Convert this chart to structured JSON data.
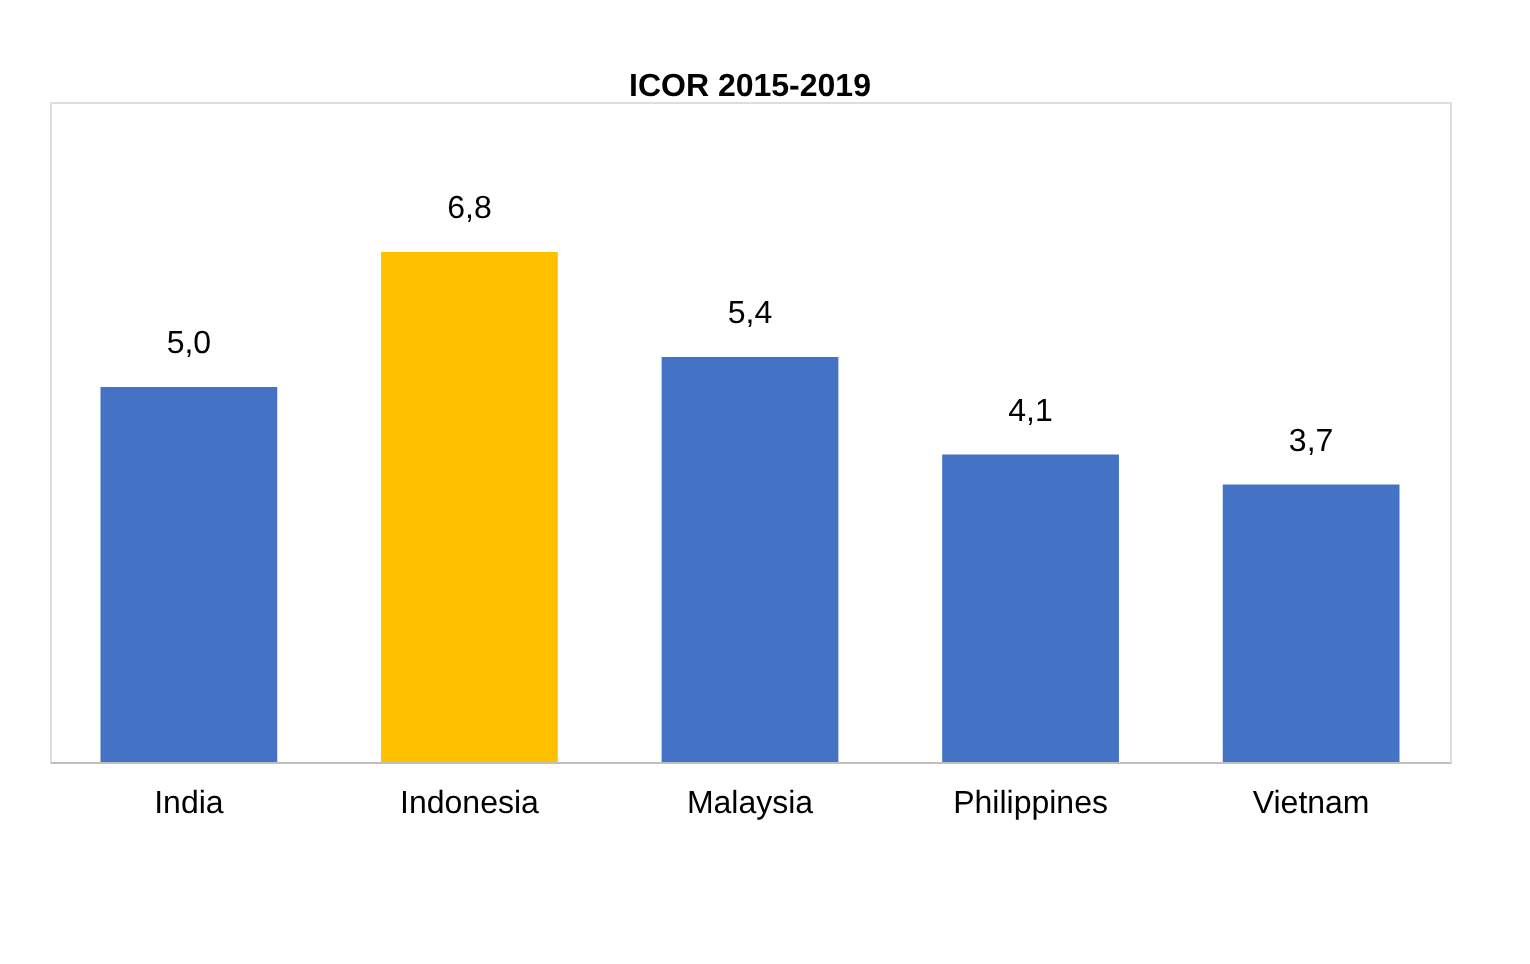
{
  "chart_data": {
    "type": "bar",
    "title": "ICOR 2015-2019",
    "categories": [
      "India",
      "Indonesia",
      "Malaysia",
      "Philippines",
      "Vietnam"
    ],
    "values": [
      5.0,
      6.8,
      5.4,
      4.1,
      3.7
    ],
    "colors": [
      "#4472c4",
      "#ffc000",
      "#4472c4",
      "#4472c4",
      "#4472c4"
    ],
    "value_labels": [
      "5,0",
      "6,8",
      "5,4",
      "4,1",
      "3,7"
    ]
  }
}
